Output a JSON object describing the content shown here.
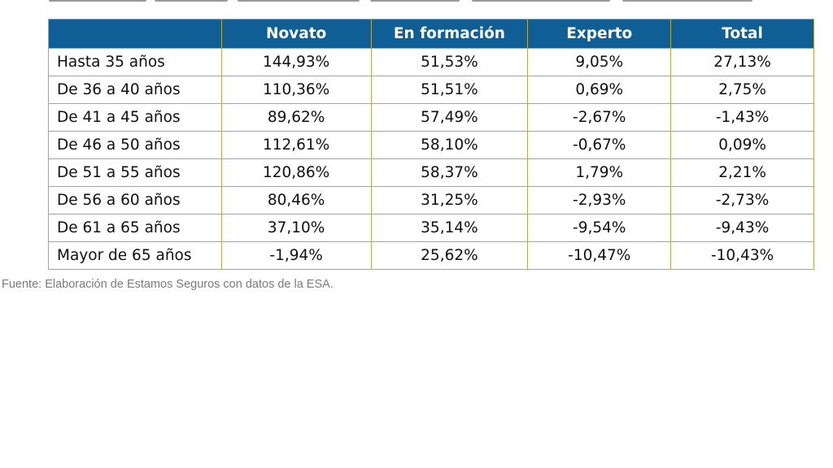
{
  "table": {
    "headers": [
      "",
      "Novato",
      "En formación",
      "Experto",
      "Total"
    ],
    "rows": [
      [
        "Hasta 35 años",
        "144,93%",
        "51,53%",
        "9,05%",
        "27,13%"
      ],
      [
        "De 36 a 40 años",
        "110,36%",
        "51,51%",
        "0,69%",
        "2,75%"
      ],
      [
        "De 41 a 45 años",
        "89,62%",
        "57,49%",
        "-2,67%",
        "-1,43%"
      ],
      [
        "De 46 a 50 años",
        "112,61%",
        "58,10%",
        "-0,67%",
        "0,09%"
      ],
      [
        "De 51 a 55 años",
        "120,86%",
        "58,37%",
        "1,79%",
        "2,21%"
      ],
      [
        "De 56 a 60 años",
        "80,46%",
        "31,25%",
        "-2,93%",
        "-2,73%"
      ],
      [
        "De 61 a 65 años",
        "37,10%",
        "35,14%",
        "-9,54%",
        "-9,43%"
      ],
      [
        "Mayor de 65 años",
        "-1,94%",
        "25,62%",
        "-10,47%",
        "-10,43%"
      ]
    ]
  },
  "source": "Fuente: Elaboración de Estamos Seguros con datos de la ESA.",
  "colors": {
    "header_background": "#0f5f96",
    "header_text": "#ffffff",
    "border": "#b4ab4a",
    "source_text": "#7a7a7a"
  }
}
